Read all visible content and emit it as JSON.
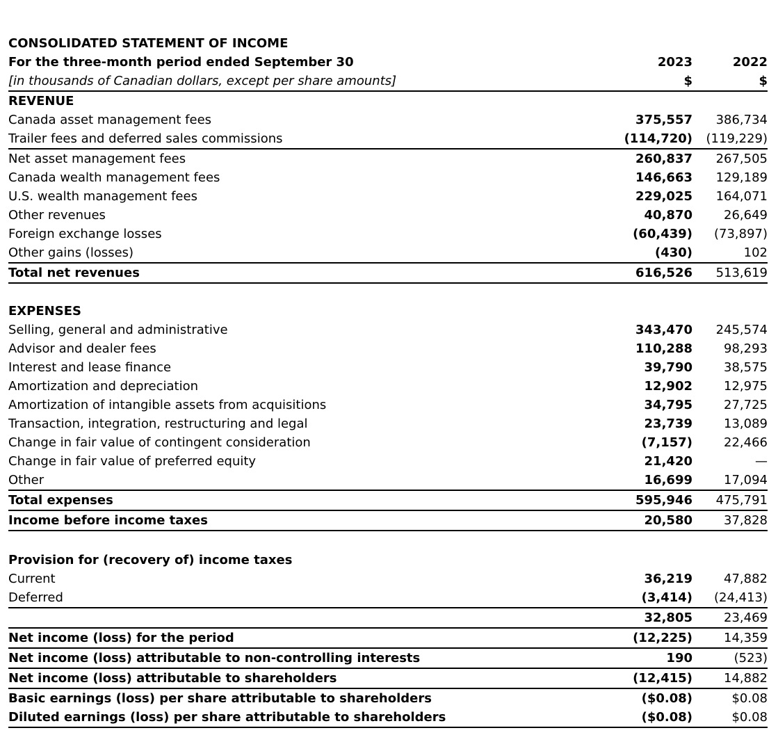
{
  "header": {
    "title": "CONSOLIDATED STATEMENT OF INCOME",
    "period": "For the three-month period ended September 30",
    "units": "[in thousands of Canadian dollars, except per share amounts]",
    "col1_year": "2023",
    "col2_year": "2022",
    "col1_currency": "$",
    "col2_currency": "$"
  },
  "revenue": {
    "heading": "REVENUE",
    "rows": [
      {
        "label": "Canada asset management fees",
        "v2023": "375,557",
        "v2022": "386,734"
      },
      {
        "label": "Trailer fees and deferred sales commissions",
        "v2023": "(114,720)",
        "v2022": "(119,229)"
      },
      {
        "label": "Net asset management fees",
        "v2023": "260,837",
        "v2022": "267,505"
      },
      {
        "label": "Canada wealth management fees",
        "v2023": "146,663",
        "v2022": "129,189"
      },
      {
        "label": "U.S. wealth management fees",
        "v2023": "229,025",
        "v2022": "164,071"
      },
      {
        "label": "Other revenues",
        "v2023": "40,870",
        "v2022": "26,649"
      },
      {
        "label": "Foreign exchange losses",
        "v2023": "(60,439)",
        "v2022": "(73,897)"
      },
      {
        "label": "Other gains (losses)",
        "v2023": "(430)",
        "v2022": "102"
      }
    ],
    "total": {
      "label": "Total net revenues",
      "v2023": "616,526",
      "v2022": "513,619"
    }
  },
  "expenses": {
    "heading": "EXPENSES",
    "rows": [
      {
        "label": "Selling, general and administrative",
        "v2023": "343,470",
        "v2022": "245,574"
      },
      {
        "label": "Advisor and dealer fees",
        "v2023": "110,288",
        "v2022": "98,293"
      },
      {
        "label": "Interest and lease finance",
        "v2023": "39,790",
        "v2022": "38,575"
      },
      {
        "label": "Amortization and depreciation",
        "v2023": "12,902",
        "v2022": "12,975"
      },
      {
        "label": "Amortization of intangible assets from acquisitions",
        "v2023": "34,795",
        "v2022": "27,725"
      },
      {
        "label": "Transaction, integration, restructuring and legal",
        "v2023": "23,739",
        "v2022": "13,089"
      },
      {
        "label": "Change in fair value of contingent consideration",
        "v2023": "(7,157)",
        "v2022": "22,466"
      },
      {
        "label": "Change in fair value of preferred equity",
        "v2023": "21,420",
        "v2022": "—"
      },
      {
        "label": "Other",
        "v2023": "16,699",
        "v2022": "17,094"
      }
    ],
    "total": {
      "label": "Total expenses",
      "v2023": "595,946",
      "v2022": "475,791"
    },
    "income_before_taxes": {
      "label": "Income before income taxes",
      "v2023": "20,580",
      "v2022": "37,828"
    }
  },
  "taxes": {
    "heading": "Provision for (recovery of) income taxes",
    "rows": [
      {
        "label": "Current",
        "v2023": "36,219",
        "v2022": "47,882"
      },
      {
        "label": "Deferred",
        "v2023": "(3,414)",
        "v2022": "(24,413)"
      }
    ],
    "total": {
      "label": "",
      "v2023": "32,805",
      "v2022": "23,469"
    }
  },
  "results": [
    {
      "label": "Net income (loss) for the period",
      "v2023": "(12,225)",
      "v2022": "14,359"
    },
    {
      "label": "Net income (loss) attributable to non-controlling interests",
      "v2023": "190",
      "v2022": "(523)"
    },
    {
      "label": "Net income (loss) attributable to shareholders",
      "v2023": "(12,415)",
      "v2022": "14,882"
    },
    {
      "label": "Basic earnings (loss) per share attributable to shareholders",
      "v2023": "($0.08)",
      "v2022": "$0.08"
    },
    {
      "label": "Diluted earnings (loss) per share attributable to shareholders",
      "v2023": "($0.08)",
      "v2022": "$0.08"
    }
  ]
}
